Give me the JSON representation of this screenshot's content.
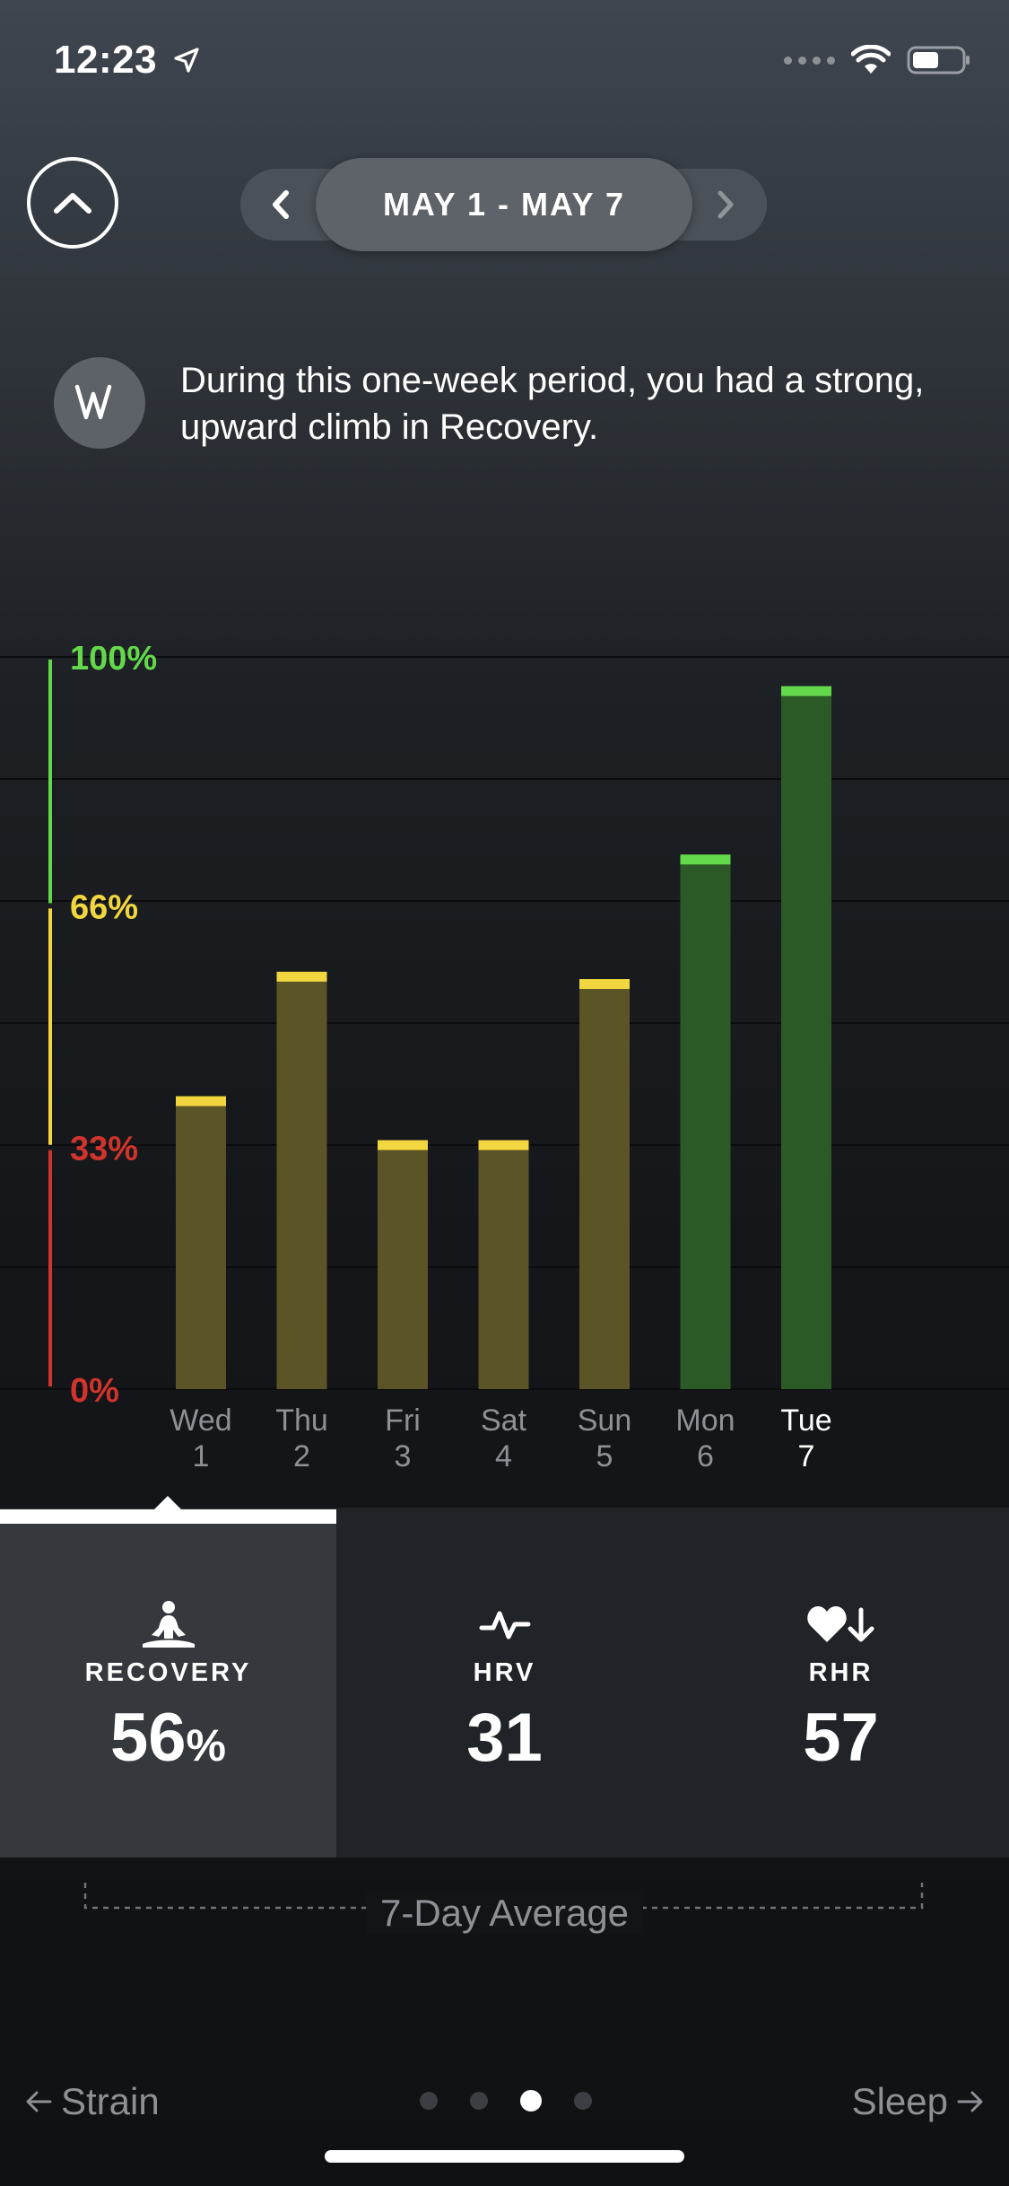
{
  "status_bar": {
    "time": "12:23"
  },
  "header": {
    "date_range": "MAY 1 - MAY 7"
  },
  "insight": {
    "text": "During this one-week period, you had a strong, upward climb in Recovery."
  },
  "chart_data": {
    "type": "bar",
    "categories": [
      "Wed 1",
      "Thu 2",
      "Fri 3",
      "Sat 4",
      "Sun 5",
      "Mon 6",
      "Tue 7"
    ],
    "day_names": [
      "Wed",
      "Thu",
      "Fri",
      "Sat",
      "Sun",
      "Mon",
      "Tue"
    ],
    "day_numbers": [
      "1",
      "2",
      "3",
      "4",
      "5",
      "6",
      "7"
    ],
    "values": [
      40,
      57,
      34,
      34,
      56,
      73,
      96
    ],
    "ylim": [
      0,
      100
    ],
    "y_ticks": [
      {
        "value": 100,
        "label": "100%",
        "color": "#64d84b"
      },
      {
        "value": 66,
        "label": "66%",
        "color": "#f2d640"
      },
      {
        "value": 33,
        "label": "33%",
        "color": "#d0342c"
      },
      {
        "value": 0,
        "label": "0%",
        "color": "#d0342c"
      }
    ],
    "zones": [
      {
        "from": 66,
        "to": 100,
        "color": "#64d84b",
        "fill": "#2c5a26"
      },
      {
        "from": 33,
        "to": 66,
        "color": "#f2d640",
        "fill": "#5b5426"
      },
      {
        "from": 0,
        "to": 33,
        "color": "#d0342c",
        "fill": "#5a2624"
      }
    ],
    "active_index": 6
  },
  "tabs": [
    {
      "icon": "meditation-icon",
      "label": "RECOVERY",
      "value": "56",
      "unit": "%"
    },
    {
      "icon": "heartbeat-pulse-icon",
      "label": "HRV",
      "value": "31",
      "unit": ""
    },
    {
      "icon": "heart-down-arrow-icon",
      "label": "RHR",
      "value": "57",
      "unit": ""
    }
  ],
  "average": {
    "label": "7-Day Average"
  },
  "footer": {
    "prev": "Strain",
    "next": "Sleep",
    "page_count": 4,
    "current_page": 3
  },
  "colors": {
    "green": "#64d84b",
    "yellow": "#f2d640",
    "red": "#d0342c"
  }
}
